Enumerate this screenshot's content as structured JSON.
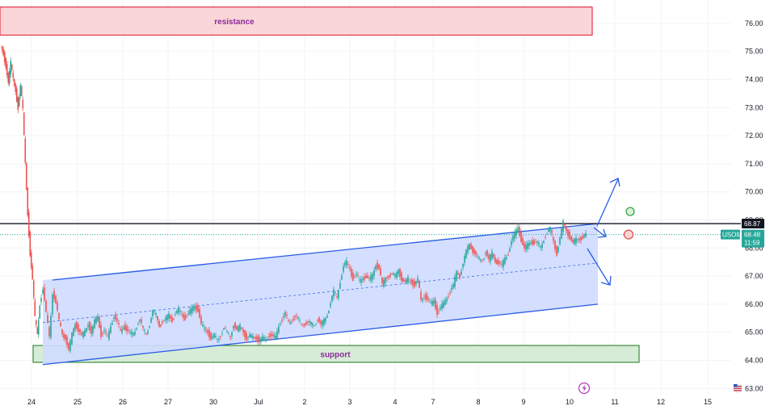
{
  "chart_data": {
    "type": "candlestick",
    "symbol": "USOIL",
    "x_tick_labels": [
      "24",
      "25",
      "26",
      "27",
      "30",
      "Jul",
      "2",
      "3",
      "4",
      "7",
      "8",
      "9",
      "10",
      "11",
      "12",
      "15"
    ],
    "y_tick_labels": [
      "76.00",
      "75.00",
      "74.00",
      "73.00",
      "72.00",
      "71.00",
      "70.00",
      "69.00",
      "68.00",
      "67.00",
      "66.00",
      "65.00",
      "64.00",
      "63.00"
    ],
    "ylim": [
      62.6,
      77.0
    ],
    "last_price": "68.48",
    "countdown": "11:59",
    "level_price": "68.87",
    "zones": [
      {
        "name": "resistance",
        "label": "resistance",
        "from": 75.58,
        "to": 76.58
      },
      {
        "name": "support",
        "label": "support",
        "from": 63.93,
        "to": 64.53
      }
    ],
    "channel": {
      "upper": [
        68.87,
        68.87
      ],
      "lower": [
        63.85,
        66.0
      ],
      "mid": [
        65.35,
        67.47
      ]
    },
    "series_outline": [
      [
        0,
        75.2
      ],
      [
        3,
        74.9
      ],
      [
        6,
        74.5
      ],
      [
        9,
        73.9
      ],
      [
        12,
        74.6
      ],
      [
        15,
        74.0
      ],
      [
        18,
        73.6
      ],
      [
        21,
        73.0
      ],
      [
        24,
        73.8
      ],
      [
        27,
        72.9
      ],
      [
        30,
        71.0
      ],
      [
        33,
        69.2
      ],
      [
        36,
        67.8
      ],
      [
        39,
        66.9
      ],
      [
        42,
        65.5
      ],
      [
        45,
        64.9
      ],
      [
        48,
        66.0
      ],
      [
        52,
        66.6
      ],
      [
        56,
        65.7
      ],
      [
        60,
        64.8
      ],
      [
        64,
        66.4
      ],
      [
        68,
        66.1
      ],
      [
        72,
        65.4
      ],
      [
        76,
        64.9
      ],
      [
        80,
        64.8
      ],
      [
        84,
        64.4
      ],
      [
        88,
        64.9
      ],
      [
        92,
        65.3
      ],
      [
        96,
        65.1
      ],
      [
        100,
        64.9
      ],
      [
        104,
        65.0
      ],
      [
        108,
        65.3
      ],
      [
        112,
        65.0
      ],
      [
        116,
        65.4
      ],
      [
        120,
        65.5
      ],
      [
        124,
        64.9
      ],
      [
        128,
        65.1
      ],
      [
        132,
        64.8
      ],
      [
        136,
        65.2
      ],
      [
        140,
        65.6
      ],
      [
        144,
        65.4
      ],
      [
        148,
        65.0
      ],
      [
        152,
        65.2
      ],
      [
        156,
        65.1
      ],
      [
        160,
        65.0
      ],
      [
        164,
        64.9
      ],
      [
        168,
        65.2
      ],
      [
        172,
        65.5
      ],
      [
        176,
        65.1
      ],
      [
        180,
        64.9
      ],
      [
        184,
        65.3
      ],
      [
        188,
        65.8
      ],
      [
        192,
        65.6
      ],
      [
        196,
        65.2
      ],
      [
        200,
        65.4
      ],
      [
        204,
        65.5
      ],
      [
        208,
        65.6
      ],
      [
        212,
        65.4
      ],
      [
        216,
        65.7
      ],
      [
        220,
        65.8
      ],
      [
        224,
        65.6
      ],
      [
        228,
        65.5
      ],
      [
        232,
        65.7
      ],
      [
        236,
        65.8
      ],
      [
        240,
        65.9
      ],
      [
        244,
        65.8
      ],
      [
        248,
        65.3
      ],
      [
        252,
        65.1
      ],
      [
        256,
        65.0
      ],
      [
        260,
        64.8
      ],
      [
        264,
        64.9
      ],
      [
        268,
        64.7
      ],
      [
        272,
        64.9
      ],
      [
        276,
        65.2
      ],
      [
        280,
        65.0
      ],
      [
        284,
        64.8
      ],
      [
        288,
        65.3
      ],
      [
        292,
        65.1
      ],
      [
        296,
        65.2
      ],
      [
        300,
        65.0
      ],
      [
        304,
        64.8
      ],
      [
        308,
        64.9
      ],
      [
        312,
        64.8
      ],
      [
        316,
        64.8
      ],
      [
        320,
        64.7
      ],
      [
        324,
        64.8
      ],
      [
        328,
        64.7
      ],
      [
        332,
        64.9
      ],
      [
        336,
        64.9
      ],
      [
        340,
        64.8
      ],
      [
        344,
        65.2
      ],
      [
        348,
        65.5
      ],
      [
        352,
        65.7
      ],
      [
        356,
        65.3
      ],
      [
        360,
        65.4
      ],
      [
        364,
        65.6
      ],
      [
        368,
        65.5
      ],
      [
        372,
        65.2
      ],
      [
        376,
        65.3
      ],
      [
        380,
        65.4
      ],
      [
        384,
        65.3
      ],
      [
        388,
        65.2
      ],
      [
        392,
        65.5
      ],
      [
        396,
        65.3
      ],
      [
        400,
        65.4
      ],
      [
        404,
        65.6
      ],
      [
        408,
        66.1
      ],
      [
        412,
        66.5
      ],
      [
        416,
        66.2
      ],
      [
        420,
        66.8
      ],
      [
        424,
        67.4
      ],
      [
        428,
        67.5
      ],
      [
        432,
        67.2
      ],
      [
        436,
        66.9
      ],
      [
        440,
        67.1
      ],
      [
        444,
        66.8
      ],
      [
        448,
        66.9
      ],
      [
        452,
        67.0
      ],
      [
        456,
        66.9
      ],
      [
        460,
        67.0
      ],
      [
        464,
        67.4
      ],
      [
        468,
        67.3
      ],
      [
        472,
        66.7
      ],
      [
        476,
        66.9
      ],
      [
        480,
        67.0
      ],
      [
        484,
        67.1
      ],
      [
        488,
        67.0
      ],
      [
        492,
        67.2
      ],
      [
        496,
        66.9
      ],
      [
        500,
        66.8
      ],
      [
        504,
        66.9
      ],
      [
        508,
        66.8
      ],
      [
        512,
        66.7
      ],
      [
        516,
        66.9
      ],
      [
        520,
        66.1
      ],
      [
        524,
        66.3
      ],
      [
        528,
        66.2
      ],
      [
        532,
        66.0
      ],
      [
        536,
        66.1
      ],
      [
        540,
        65.7
      ],
      [
        544,
        65.9
      ],
      [
        548,
        66.0
      ],
      [
        552,
        66.2
      ],
      [
        556,
        66.5
      ],
      [
        560,
        66.7
      ],
      [
        564,
        67.1
      ],
      [
        568,
        67.0
      ],
      [
        572,
        67.5
      ],
      [
        576,
        67.9
      ],
      [
        580,
        68.1
      ],
      [
        584,
        67.9
      ],
      [
        588,
        67.8
      ],
      [
        592,
        67.6
      ],
      [
        596,
        67.5
      ],
      [
        600,
        67.9
      ],
      [
        604,
        67.6
      ],
      [
        608,
        67.8
      ],
      [
        612,
        67.5
      ],
      [
        616,
        67.5
      ],
      [
        620,
        67.4
      ],
      [
        624,
        67.6
      ],
      [
        628,
        67.8
      ],
      [
        632,
        68.3
      ],
      [
        636,
        68.5
      ],
      [
        640,
        68.7
      ],
      [
        644,
        68.3
      ],
      [
        648,
        68.0
      ],
      [
        652,
        68.1
      ],
      [
        656,
        68.2
      ],
      [
        660,
        68.2
      ],
      [
        664,
        68.2
      ],
      [
        668,
        68.0
      ],
      [
        672,
        68.3
      ],
      [
        676,
        68.6
      ],
      [
        680,
        68.7
      ],
      [
        684,
        68.2
      ],
      [
        688,
        67.8
      ],
      [
        692,
        68.4
      ],
      [
        696,
        68.9
      ],
      [
        700,
        68.6
      ],
      [
        704,
        68.4
      ],
      [
        708,
        68.2
      ],
      [
        712,
        68.3
      ],
      [
        716,
        68.3
      ],
      [
        720,
        68.4
      ],
      [
        724,
        68.48
      ]
    ],
    "signal_circles": [
      {
        "name": "up",
        "price": 69.3,
        "color": "#2e9e3e"
      },
      {
        "name": "down",
        "price": 68.48,
        "color": "#e04b4b"
      }
    ],
    "colors": {
      "bull": "#26a69a",
      "bear": "#ef5350",
      "channel_fill": "#cfdcff",
      "channel_line": "#2a5de5",
      "resistance_fill": "#fbd6d9",
      "resistance_border": "#e03247",
      "support_fill": "#d6ecd7",
      "support_border": "#3a8a3f",
      "level_line": "#131722",
      "price_tag": "#26a69a",
      "symbol_tag": "#26a69a",
      "level_tag": "#131722"
    }
  }
}
